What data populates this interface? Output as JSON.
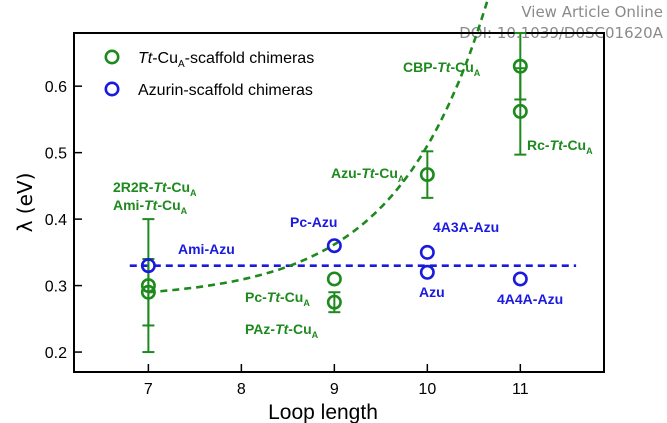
{
  "watermark": {
    "line1": "View Article Online",
    "line2": "DOI: 10.1039/D0SC01620A"
  },
  "chart_data": {
    "type": "scatter",
    "xlabel": "Loop length",
    "ylabel": "λ (eV)",
    "xlim": [
      6.2,
      11.9
    ],
    "ylim": [
      0.17,
      0.68
    ],
    "x_ticks": [
      7,
      8,
      9,
      10,
      11
    ],
    "y_ticks": [
      0.2,
      0.3,
      0.4,
      0.5,
      0.6
    ],
    "legend_position": "top-left",
    "colors": {
      "green": "#1e8a1e",
      "blue": "#1a1adf"
    },
    "series": [
      {
        "name": "Tt-CuA-scaffold chimeras",
        "color": "#1e8a1e",
        "points": [
          {
            "x": 7,
            "y": 0.3,
            "err": 0.1,
            "label_id": "2r2r"
          },
          {
            "x": 7,
            "y": 0.29,
            "err": 0.05,
            "label_id": "ami"
          },
          {
            "x": 9,
            "y": 0.31,
            "err": 0.0,
            "label_id": "pc"
          },
          {
            "x": 9,
            "y": 0.275,
            "err": 0.015,
            "label_id": "paz"
          },
          {
            "x": 10,
            "y": 0.467,
            "err": 0.035,
            "label_id": "azu"
          },
          {
            "x": 11,
            "y": 0.63,
            "err": 0.05,
            "label_id": "cbp"
          },
          {
            "x": 11,
            "y": 0.562,
            "err": 0.065,
            "label_id": "rc"
          }
        ],
        "fit": "dashed exponential trend"
      },
      {
        "name": "Azurin-scaffold chimeras",
        "color": "#1a1adf",
        "points": [
          {
            "x": 7,
            "y": 0.33,
            "label_id": "ami-azu"
          },
          {
            "x": 9,
            "y": 0.36,
            "label_id": "pc-azu"
          },
          {
            "x": 10,
            "y": 0.35,
            "label_id": "4a3a-azu"
          },
          {
            "x": 10,
            "y": 0.32,
            "label_id": "azu-b"
          },
          {
            "x": 11,
            "y": 0.31,
            "label_id": "4a4a-azu"
          }
        ],
        "fit": "dashed horizontal line at 0.33",
        "fit_value": 0.33
      }
    ],
    "annotations": [
      {
        "id": "2r2r",
        "prefix": "2R2R-",
        "italic": "Tt",
        "mid": "-Cu",
        "sub": "A",
        "color": "#1e8a1e"
      },
      {
        "id": "ami",
        "prefix": "Ami-",
        "italic": "Tt",
        "mid": "-Cu",
        "sub": "A",
        "color": "#1e8a1e"
      },
      {
        "id": "pc",
        "prefix": "Pc-",
        "italic": "Tt",
        "mid": "-Cu",
        "sub": "A",
        "color": "#1e8a1e"
      },
      {
        "id": "paz",
        "prefix": "PAz-",
        "italic": "Tt",
        "mid": "-Cu",
        "sub": "A",
        "color": "#1e8a1e"
      },
      {
        "id": "azu",
        "prefix": "Azu-",
        "italic": "Tt",
        "mid": "-Cu",
        "sub": "A",
        "color": "#1e8a1e"
      },
      {
        "id": "cbp",
        "prefix": "CBP-",
        "italic": "Tt",
        "mid": "-Cu",
        "sub": "A",
        "color": "#1e8a1e"
      },
      {
        "id": "rc",
        "prefix": "Rc-",
        "italic": "Tt",
        "mid": "-Cu",
        "sub": "A",
        "color": "#1e8a1e"
      },
      {
        "id": "ami-azu",
        "prefix": "Ami-Azu",
        "italic": "",
        "mid": "",
        "sub": "",
        "color": "#1a1adf"
      },
      {
        "id": "pc-azu",
        "prefix": "Pc-Azu",
        "italic": "",
        "mid": "",
        "sub": "",
        "color": "#1a1adf"
      },
      {
        "id": "4a3a-azu",
        "prefix": "4A3A-Azu",
        "italic": "",
        "mid": "",
        "sub": "",
        "color": "#1a1adf"
      },
      {
        "id": "azu-b",
        "prefix": "Azu",
        "italic": "",
        "mid": "",
        "sub": "",
        "color": "#1a1adf"
      },
      {
        "id": "4a4a-azu",
        "prefix": "4A4A-Azu",
        "italic": "",
        "mid": "",
        "sub": "",
        "color": "#1a1adf"
      }
    ],
    "legend": [
      {
        "italic": "Tt",
        "text": "-Cu",
        "sub": "A",
        "tail": "-scaffold chimeras",
        "color": "#1e8a1e"
      },
      {
        "italic": "",
        "text": "Azurin-scaffold chimeras",
        "sub": "",
        "tail": "",
        "color": "#1a1adf"
      }
    ]
  }
}
